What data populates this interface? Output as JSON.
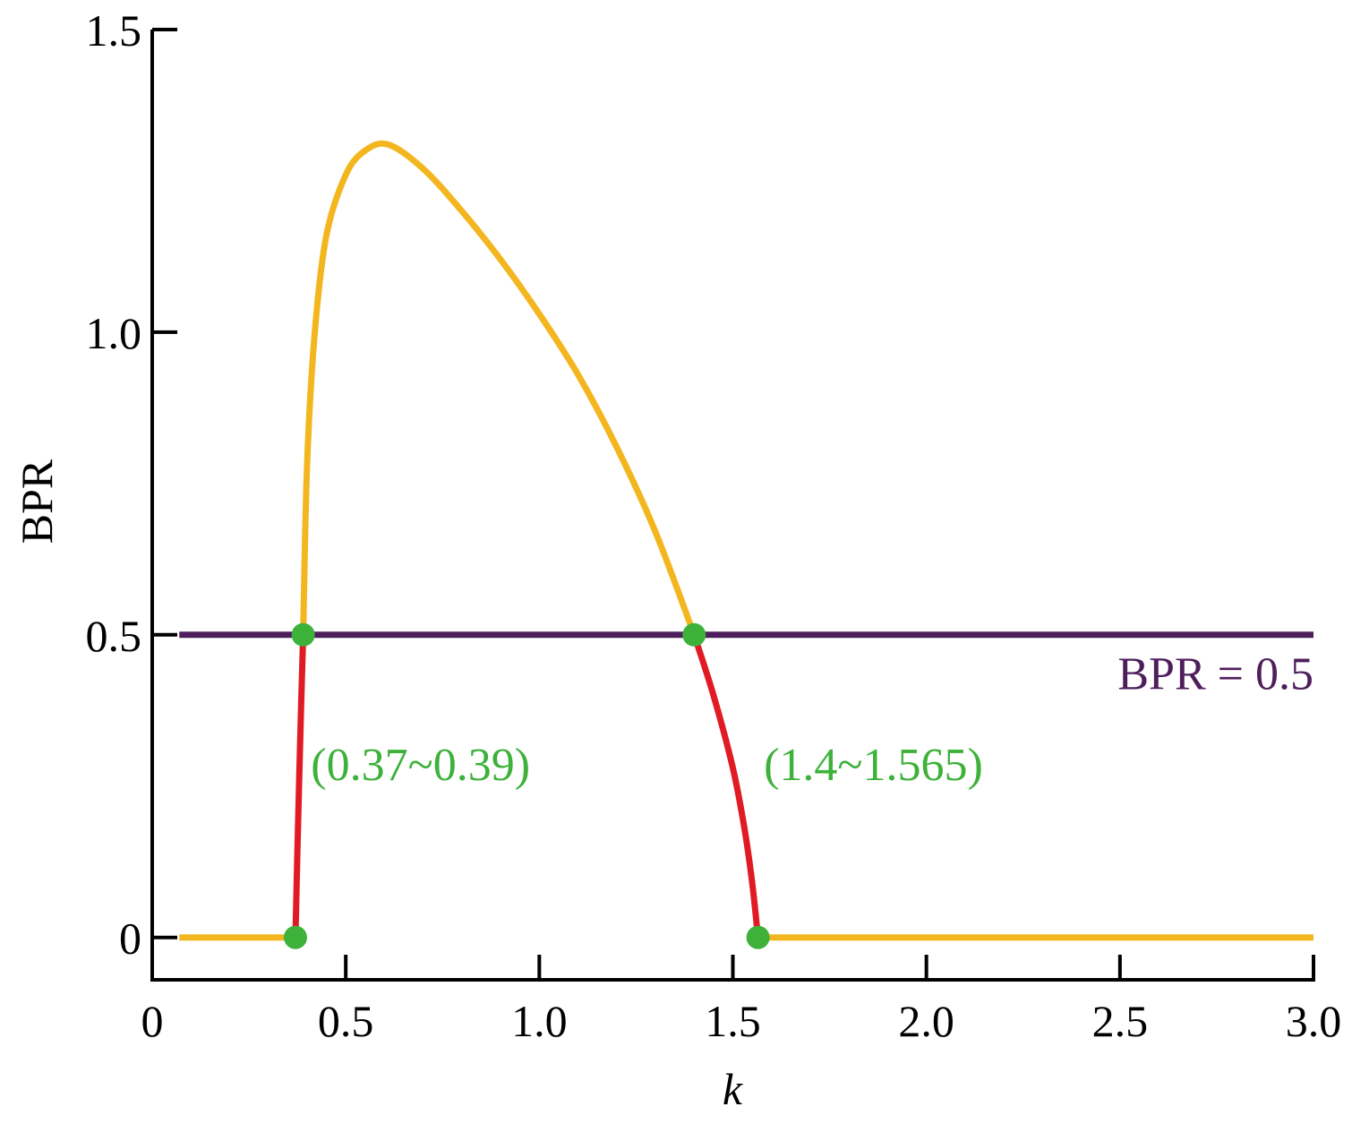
{
  "chart_data": {
    "type": "line",
    "title": "",
    "xlabel": "k",
    "ylabel": "BPR",
    "xlim": [
      0,
      3.0
    ],
    "ylim": [
      -0.07,
      1.5
    ],
    "x_ticks": [
      0,
      0.5,
      1.0,
      1.5,
      2.0,
      2.5,
      3.0
    ],
    "x_tick_labels": [
      "0",
      "0.5",
      "1.0",
      "1.5",
      "2.0",
      "2.5",
      "3.0"
    ],
    "y_ticks": [
      0,
      0.5,
      1.0,
      1.5
    ],
    "y_tick_labels": [
      "0",
      "0.5",
      "1.0",
      "1.5"
    ],
    "grid": false,
    "colors": {
      "outer": "#F3B61F",
      "inner": "#E01B24",
      "threshold": "#4E1E5C",
      "markers": "#3DB13A"
    },
    "series": [
      {
        "x": [
          0.07,
          0.37
        ],
        "y": [
          0,
          0
        ],
        "color": "outer"
      },
      {
        "x": [
          0.37,
          0.375,
          0.38,
          0.385,
          0.39
        ],
        "y": [
          0,
          0.14,
          0.27,
          0.39,
          0.5
        ],
        "color": "inner"
      },
      {
        "x": [
          0.39,
          0.4,
          0.42,
          0.45,
          0.5,
          0.55,
          0.61,
          0.7,
          0.8,
          0.9,
          1.0,
          1.1,
          1.2,
          1.3,
          1.4
        ],
        "y": [
          0.5,
          0.78,
          1.0,
          1.16,
          1.26,
          1.3,
          1.31,
          1.27,
          1.2,
          1.12,
          1.03,
          0.93,
          0.81,
          0.67,
          0.5
        ],
        "color": "outer"
      },
      {
        "x": [
          1.4,
          1.45,
          1.5,
          1.53,
          1.55,
          1.565
        ],
        "y": [
          0.5,
          0.4,
          0.28,
          0.18,
          0.09,
          0
        ],
        "color": "inner"
      },
      {
        "x": [
          1.565,
          3.0
        ],
        "y": [
          0,
          0
        ],
        "color": "outer"
      },
      {
        "x": [
          0.07,
          3.0
        ],
        "y": [
          0.5,
          0.5
        ],
        "color": "threshold"
      }
    ],
    "markers": [
      {
        "x": 0.37,
        "y": 0
      },
      {
        "x": 0.39,
        "y": 0.5
      },
      {
        "x": 1.4,
        "y": 0.5
      },
      {
        "x": 1.565,
        "y": 0
      }
    ],
    "annotations": [
      {
        "text": "(0.37~0.39)",
        "x": 0.41,
        "y": 0.26,
        "color": "markers",
        "anchor": "start"
      },
      {
        "text": "(1.4~1.565)",
        "x": 1.58,
        "y": 0.26,
        "color": "markers",
        "anchor": "start"
      },
      {
        "text": "BPR = 0.5",
        "x": 3.0,
        "y": 0.41,
        "color": "threshold",
        "anchor": "end"
      }
    ]
  }
}
